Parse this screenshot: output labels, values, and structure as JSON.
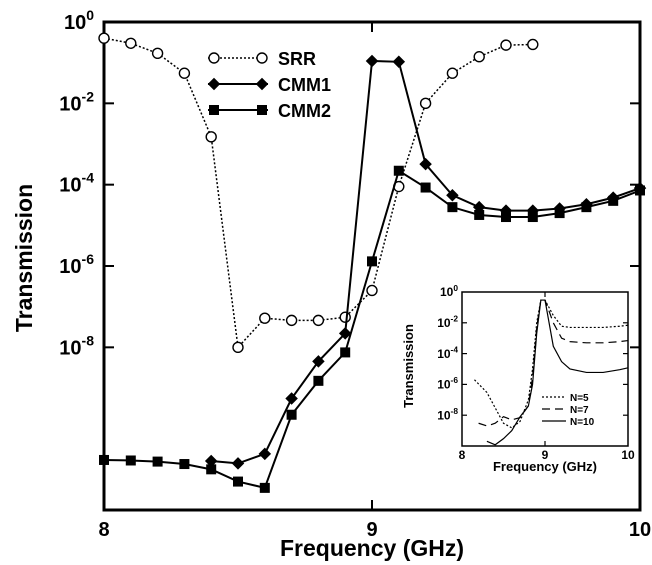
{
  "chart_data": [
    {
      "type": "line",
      "xlabel": "Frequency (GHz)",
      "ylabel": "Transmission",
      "xlim": [
        8,
        10
      ],
      "ylim": [
        1e-12,
        1
      ],
      "yscale": "log",
      "xticks": [
        {
          "value": 8,
          "label": "8"
        },
        {
          "value": 9,
          "label": "9"
        },
        {
          "value": 10,
          "label": "10"
        }
      ],
      "yticks": [
        {
          "value": 1,
          "base": "10",
          "exp": "0"
        },
        {
          "value": 0.01,
          "base": "10",
          "exp": "-2"
        },
        {
          "value": 0.0001,
          "base": "10",
          "exp": "-4"
        },
        {
          "value": 1e-06,
          "base": "10",
          "exp": "-6"
        },
        {
          "value": 1e-08,
          "base": "10",
          "exp": "-8"
        }
      ],
      "legend_position": "top-center",
      "series": [
        {
          "name": "SRR",
          "marker": "open-circle",
          "line": "dotted",
          "x": [
            8.0,
            8.1,
            8.2,
            8.3,
            8.4,
            8.5,
            8.6,
            8.7,
            8.8,
            8.9,
            9.0,
            9.1,
            9.2,
            9.3,
            9.4,
            9.5,
            9.6
          ],
          "y": [
            0.4,
            0.3,
            0.17,
            0.055,
            0.0015,
            1e-08,
            5.2e-08,
            4.6e-08,
            4.6e-08,
            5.5e-08,
            2.5e-07,
            9e-05,
            0.01,
            0.055,
            0.14,
            0.27,
            0.28
          ]
        },
        {
          "name": "CMM1",
          "marker": "filled-diamond",
          "line": "solid",
          "x": [
            8.4,
            8.5,
            8.6,
            8.7,
            8.8,
            8.9,
            9.0,
            9.1,
            9.2,
            9.3,
            9.4,
            9.5,
            9.6,
            9.7,
            9.8,
            9.9,
            10.0
          ],
          "y": [
            1.6e-11,
            1.4e-11,
            2.4e-11,
            5.5e-10,
            4.5e-09,
            2.2e-08,
            0.11,
            0.105,
            0.00032,
            5.5e-05,
            2.8e-05,
            2.3e-05,
            2.3e-05,
            2.6e-05,
            3.3e-05,
            4.8e-05,
            8.2e-05
          ]
        },
        {
          "name": "CMM2",
          "marker": "filled-square",
          "line": "solid",
          "x": [
            8.0,
            8.1,
            8.2,
            8.3,
            8.4,
            8.5,
            8.6,
            8.7,
            8.8,
            8.9,
            9.0,
            9.1,
            9.2,
            9.3,
            9.4,
            9.5,
            9.6,
            9.7,
            9.8,
            9.9,
            10.0
          ],
          "y": [
            1.7e-11,
            1.65e-11,
            1.55e-11,
            1.35e-11,
            1e-11,
            5e-12,
            3.5e-12,
            2.2e-10,
            1.5e-09,
            7.5e-09,
            1.3e-06,
            0.00022,
            8.5e-05,
            2.8e-05,
            1.8e-05,
            1.6e-05,
            1.6e-05,
            2e-05,
            2.8e-05,
            4e-05,
            7.2e-05
          ]
        }
      ]
    },
    {
      "type": "line",
      "xlabel": "Frequency (GHz)",
      "ylabel": "Transmission",
      "xlim": [
        8,
        10
      ],
      "ylim": [
        1e-10,
        1
      ],
      "yscale": "log",
      "xticks": [
        {
          "value": 8,
          "label": "8"
        },
        {
          "value": 9,
          "label": "9"
        },
        {
          "value": 10,
          "label": "10"
        }
      ],
      "yticks": [
        {
          "value": 1,
          "base": "10",
          "exp": "0"
        },
        {
          "value": 0.01,
          "base": "10",
          "exp": "-2"
        },
        {
          "value": 0.0001,
          "base": "10",
          "exp": "-4"
        },
        {
          "value": 1e-06,
          "base": "10",
          "exp": "-6"
        },
        {
          "value": 1e-08,
          "base": "10",
          "exp": "-8"
        }
      ],
      "legend_position": "bottom-right",
      "series": [
        {
          "name": "N=5",
          "line": "dotted",
          "x": [
            8.15,
            8.3,
            8.4,
            8.5,
            8.6,
            8.7,
            8.8,
            8.85,
            8.9,
            8.95,
            9.0,
            9.1,
            9.2,
            9.3,
            9.5,
            9.7,
            9.9,
            10.0
          ],
          "y": [
            2e-06,
            3e-07,
            3e-08,
            3e-09,
            1.5e-09,
            4e-09,
            1e-07,
            1e-05,
            0.01,
            0.3,
            0.3,
            0.03,
            0.006,
            0.005,
            0.005,
            0.005,
            0.006,
            0.007
          ]
        },
        {
          "name": "N=7",
          "line": "dashed",
          "x": [
            8.2,
            8.3,
            8.4,
            8.5,
            8.6,
            8.7,
            8.8,
            8.85,
            8.9,
            8.95,
            9.0,
            9.1,
            9.2,
            9.3,
            9.5,
            9.7,
            9.9,
            10.0
          ],
          "y": [
            3e-09,
            2e-09,
            3e-09,
            8e-09,
            5e-09,
            7e-09,
            4e-08,
            3e-06,
            0.005,
            0.3,
            0.3,
            0.01,
            0.001,
            0.0006,
            0.0005,
            0.0005,
            0.0006,
            0.0007
          ]
        },
        {
          "name": "N=10",
          "line": "solid",
          "x": [
            8.3,
            8.4,
            8.5,
            8.6,
            8.7,
            8.8,
            8.85,
            8.9,
            8.95,
            9.0,
            9.1,
            9.2,
            9.3,
            9.5,
            9.7,
            9.9,
            10.0
          ],
          "y": [
            2e-10,
            1.2e-10,
            3e-10,
            1e-09,
            8e-09,
            4e-08,
            1e-06,
            0.002,
            0.3,
            0.3,
            0.0003,
            3e-05,
            1e-05,
            6e-06,
            6e-06,
            9e-06,
            1.2e-05
          ]
        }
      ]
    }
  ]
}
